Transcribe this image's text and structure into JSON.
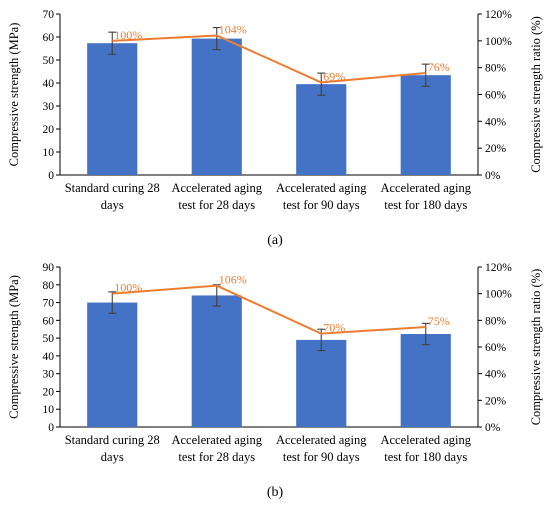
{
  "chart_data": [
    {
      "type": "bar",
      "panel_label": "(a)",
      "categories": [
        [
          "Standard curing 28",
          "days"
        ],
        [
          "Accelerated aging",
          "test for 28 days"
        ],
        [
          "Accelerated aging",
          "test for 90 days"
        ],
        [
          "Accelerated aging",
          "test for 180 days"
        ]
      ],
      "ylabel": "Compressive strength (MPa)",
      "y2label": "Compressive strength ratio (%)",
      "ylim": [
        0,
        70
      ],
      "ystep": 10,
      "y2lim": [
        0,
        120
      ],
      "y2step": 20,
      "colors": {
        "bar": "#4472C4",
        "line": "#ED7D31",
        "error": "#404040"
      },
      "series": [
        {
          "type": "bar",
          "axis": "left",
          "values": [
            57.3,
            59.3,
            39.5,
            43.4
          ],
          "errors": [
            4.8,
            4.8,
            4.8,
            4.8
          ]
        },
        {
          "type": "line",
          "axis": "right",
          "values": [
            100,
            104,
            69,
            76
          ],
          "labels": [
            "100%",
            "104%",
            "69%",
            "76%"
          ]
        }
      ]
    },
    {
      "type": "bar",
      "panel_label": "(b)",
      "categories": [
        [
          "Standard curing 28",
          "days"
        ],
        [
          "Accelerated aging",
          "test for 28 days"
        ],
        [
          "Accelerated aging",
          "test for 90 days"
        ],
        [
          "Accelerated aging",
          "test for 180 days"
        ]
      ],
      "ylabel": "Compressive strength (MPa)",
      "y2label": "Compressive strength ratio (%)",
      "ylim": [
        0,
        90
      ],
      "ystep": 10,
      "y2lim": [
        0,
        120
      ],
      "y2step": 20,
      "colors": {
        "bar": "#4472C4",
        "line": "#ED7D31",
        "error": "#404040"
      },
      "series": [
        {
          "type": "bar",
          "axis": "left",
          "values": [
            70.0,
            74.0,
            49.0,
            52.3
          ],
          "errors": [
            6.0,
            6.0,
            6.0,
            6.0
          ]
        },
        {
          "type": "line",
          "axis": "right",
          "values": [
            100,
            106,
            70,
            75
          ],
          "labels": [
            "100%",
            "106%",
            "70%",
            "75%"
          ]
        }
      ]
    }
  ]
}
